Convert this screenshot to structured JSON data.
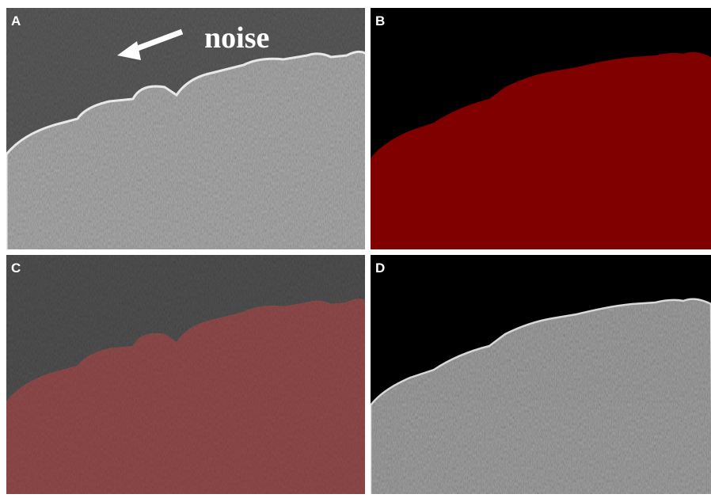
{
  "panels": [
    {
      "label": "A",
      "annotation": "noise"
    },
    {
      "label": "B"
    },
    {
      "label": "C"
    },
    {
      "label": "D"
    }
  ]
}
